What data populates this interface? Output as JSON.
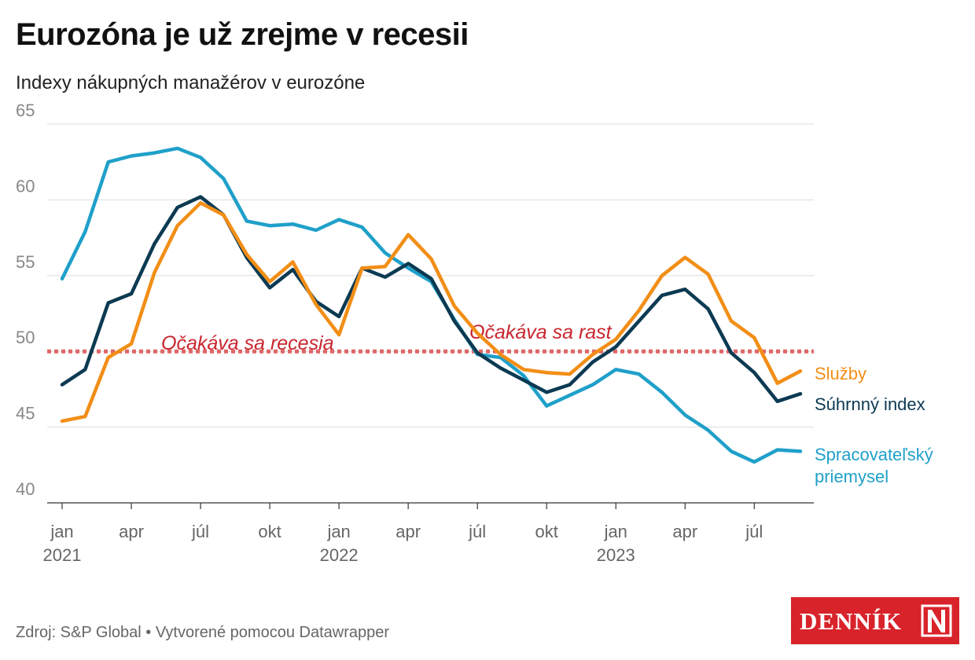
{
  "header": {
    "title": "Eurozóna je už zrejme v recesii",
    "subtitle": "Indexy nákupných manažérov v eurozóne"
  },
  "footer": {
    "source": "Zdroj: S&P Global • Vytvorené pomocou Datawrapper"
  },
  "logo": {
    "text": "DENNÍK N",
    "bg_color": "#d8232a"
  },
  "chart_data": {
    "type": "line",
    "x": [
      "2021-01",
      "2021-02",
      "2021-03",
      "2021-04",
      "2021-05",
      "2021-06",
      "2021-07",
      "2021-08",
      "2021-09",
      "2021-10",
      "2021-11",
      "2021-12",
      "2022-01",
      "2022-02",
      "2022-03",
      "2022-04",
      "2022-05",
      "2022-06",
      "2022-07",
      "2022-08",
      "2022-09",
      "2022-10",
      "2022-11",
      "2022-12",
      "2023-01",
      "2023-02",
      "2023-03",
      "2023-04",
      "2023-05",
      "2023-06",
      "2023-07",
      "2023-08",
      "2023-09"
    ],
    "x_ticks": [
      {
        "index": 0,
        "label": "jan",
        "year": "2021"
      },
      {
        "index": 3,
        "label": "apr",
        "year": ""
      },
      {
        "index": 6,
        "label": "júl",
        "year": ""
      },
      {
        "index": 9,
        "label": "okt",
        "year": ""
      },
      {
        "index": 12,
        "label": "jan",
        "year": "2022"
      },
      {
        "index": 15,
        "label": "apr",
        "year": ""
      },
      {
        "index": 18,
        "label": "júl",
        "year": ""
      },
      {
        "index": 21,
        "label": "okt",
        "year": ""
      },
      {
        "index": 24,
        "label": "jan",
        "year": "2023"
      },
      {
        "index": 27,
        "label": "apr",
        "year": ""
      },
      {
        "index": 30,
        "label": "júl",
        "year": ""
      }
    ],
    "ylim": [
      40,
      65
    ],
    "y_ticks": [
      40,
      45,
      50,
      55,
      60,
      65
    ],
    "grid": true,
    "reference_line": {
      "value": 50,
      "color": "#e06666",
      "label_below": "Očakáva sa recesia",
      "label_above": "Očakáva sa rast",
      "label_color": "#c8262e"
    },
    "series": [
      {
        "name": "Spracovateľský priemysel",
        "label_lines": [
          "Spracovateľský",
          "priemysel"
        ],
        "color": "#1fa0c9",
        "values": [
          54.8,
          57.9,
          62.5,
          62.9,
          63.1,
          63.4,
          62.8,
          61.4,
          58.6,
          58.3,
          58.4,
          58.0,
          58.7,
          58.2,
          56.5,
          55.5,
          54.6,
          52.1,
          49.8,
          49.6,
          48.4,
          46.4,
          47.1,
          47.8,
          48.8,
          48.5,
          47.3,
          45.8,
          44.8,
          43.4,
          42.7,
          43.5,
          43.4
        ]
      },
      {
        "name": "Súhrnný index",
        "label_lines": [
          "Súhrnný index"
        ],
        "color": "#0c3a52",
        "values": [
          47.8,
          48.8,
          53.2,
          53.8,
          57.1,
          59.5,
          60.2,
          59.0,
          56.2,
          54.2,
          55.4,
          53.3,
          52.3,
          55.5,
          54.9,
          55.8,
          54.8,
          52.0,
          49.9,
          48.9,
          48.1,
          47.3,
          47.8,
          49.3,
          50.3,
          52.0,
          53.7,
          54.1,
          52.8,
          49.9,
          48.6,
          46.7,
          47.2
        ]
      },
      {
        "name": "Služby",
        "label_lines": [
          "Služby"
        ],
        "color": "#f28e16",
        "values": [
          45.4,
          45.7,
          49.6,
          50.5,
          55.2,
          58.3,
          59.8,
          59.0,
          56.4,
          54.6,
          55.9,
          53.1,
          51.1,
          55.5,
          55.6,
          57.7,
          56.1,
          53.0,
          51.2,
          49.8,
          48.8,
          48.6,
          48.5,
          49.8,
          50.8,
          52.7,
          55.0,
          56.2,
          55.1,
          52.0,
          50.9,
          47.9,
          48.7
        ]
      }
    ]
  }
}
